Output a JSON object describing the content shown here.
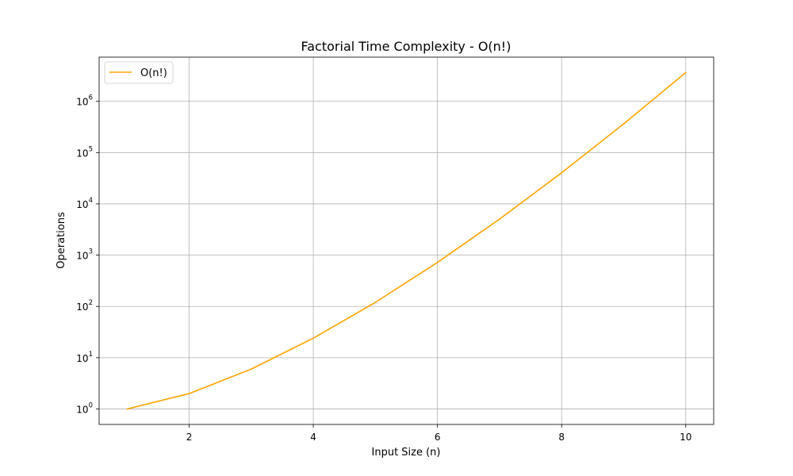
{
  "chart_data": {
    "type": "line",
    "title": "Factorial Time Complexity - O(n!)",
    "xlabel": "Input Size (n)",
    "ylabel": "Operations",
    "yscale": "log",
    "grid": true,
    "legend_position": "top-left",
    "xlim": [
      0.55,
      10.45
    ],
    "ylim": [
      0.5,
      7257600
    ],
    "x_ticks": [
      2,
      4,
      6,
      8,
      10
    ],
    "y_ticks": [
      {
        "value": 1,
        "base": "10",
        "exp": "0"
      },
      {
        "value": 10,
        "base": "10",
        "exp": "1"
      },
      {
        "value": 100,
        "base": "10",
        "exp": "2"
      },
      {
        "value": 1000,
        "base": "10",
        "exp": "3"
      },
      {
        "value": 10000,
        "base": "10",
        "exp": "4"
      },
      {
        "value": 100000,
        "base": "10",
        "exp": "5"
      },
      {
        "value": 1000000,
        "base": "10",
        "exp": "6"
      }
    ],
    "series": [
      {
        "name": "O(n!)",
        "color": "#FFA500",
        "x": [
          1,
          2,
          3,
          4,
          5,
          6,
          7,
          8,
          9,
          10
        ],
        "y": [
          1,
          2,
          6,
          24,
          120,
          720,
          5040,
          40320,
          362880,
          3628800
        ]
      }
    ]
  }
}
